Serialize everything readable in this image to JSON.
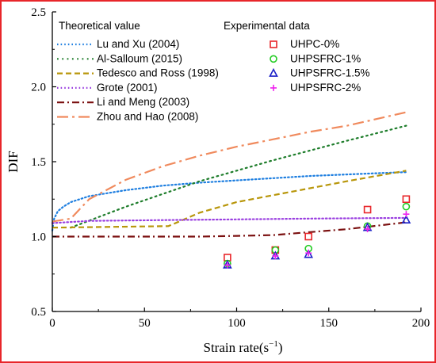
{
  "border_color": "#e8262a",
  "chart_data": {
    "type": "line",
    "xlabel": "Strain rate(s",
    "xlabel_sup": "−1",
    "xlabel_close": ")",
    "ylabel": "DIF",
    "xlim": [
      0,
      200
    ],
    "ylim": [
      0.5,
      2.5
    ],
    "xticks": [
      "0",
      "50",
      "100",
      "150",
      "200"
    ],
    "yticks": [
      "0.5",
      "1.0",
      "1.5",
      "2.0",
      "2.5"
    ],
    "xtick_values": [
      0,
      50,
      100,
      150,
      200
    ],
    "ytick_values": [
      0.5,
      1.0,
      1.5,
      2.0,
      2.5
    ],
    "grid": false,
    "legend_groups": [
      "Theoretical value",
      "Experimental data"
    ],
    "theoretical": [
      {
        "name": "Lu and Xu (2004)",
        "color": "#1f7fe0",
        "dash": "dot",
        "x": [
          0,
          1,
          3,
          6,
          10,
          20,
          40,
          60,
          80,
          100,
          120,
          140,
          160,
          180,
          192
        ],
        "y": [
          1.04,
          1.12,
          1.17,
          1.2,
          1.23,
          1.27,
          1.31,
          1.34,
          1.36,
          1.375,
          1.39,
          1.405,
          1.415,
          1.425,
          1.43
        ]
      },
      {
        "name": "Al-Salloum (2015)",
        "color": "#1e7d2b",
        "dash": "dotdense",
        "x": [
          10,
          40,
          80,
          120,
          160,
          192
        ],
        "y": [
          1.06,
          1.2,
          1.37,
          1.51,
          1.64,
          1.74
        ]
      },
      {
        "name": "Tedesco and Ross (1998)",
        "color": "#b8960a",
        "dash": "dash",
        "x": [
          0,
          63,
          80,
          100,
          130,
          160,
          192
        ],
        "y": [
          1.06,
          1.07,
          1.16,
          1.23,
          1.3,
          1.37,
          1.44
        ]
      },
      {
        "name": "Grote (2001)",
        "color": "#9a3fe0",
        "dash": "dot",
        "x": [
          0,
          20,
          60,
          100,
          140,
          192
        ],
        "y": [
          1.09,
          1.105,
          1.11,
          1.115,
          1.12,
          1.125
        ]
      },
      {
        "name": "Li and Meng (2003)",
        "color": "#7a0f0f",
        "dash": "dashdot",
        "x": [
          0,
          40,
          80,
          100,
          120,
          140,
          160,
          192
        ],
        "y": [
          1.0,
          1.0,
          1.0,
          1.005,
          1.01,
          1.03,
          1.05,
          1.095
        ]
      },
      {
        "name": "Zhou and Hao (2008)",
        "color": "#f08a5d",
        "dash": "longdashdot",
        "x": [
          0,
          10,
          20,
          40,
          60,
          80,
          100,
          120,
          140,
          160,
          192
        ],
        "y": [
          1.1,
          1.12,
          1.25,
          1.38,
          1.47,
          1.54,
          1.6,
          1.65,
          1.7,
          1.74,
          1.83
        ]
      }
    ],
    "experimental": [
      {
        "name": "UHPC-0%",
        "color": "#e8262a",
        "marker": "square",
        "x": [
          95,
          121,
          139,
          171,
          192
        ],
        "y": [
          0.86,
          0.91,
          1.0,
          1.18,
          1.25
        ]
      },
      {
        "name": "UHPSFRC-1%",
        "color": "#22cc22",
        "marker": "circle",
        "x": [
          95,
          121,
          139,
          171,
          192
        ],
        "y": [
          0.82,
          0.91,
          0.92,
          1.07,
          1.2
        ]
      },
      {
        "name": "UHPSFRC-1.5%",
        "color": "#1c22c8",
        "marker": "triangle",
        "x": [
          95,
          121,
          139,
          171,
          192
        ],
        "y": [
          0.81,
          0.87,
          0.88,
          1.06,
          1.11
        ]
      },
      {
        "name": "UHPSFRC-2%",
        "color": "#ee22ee",
        "marker": "plus",
        "x": [
          95,
          121,
          139,
          171,
          192
        ],
        "y": [
          0.81,
          0.87,
          0.89,
          1.05,
          1.15
        ]
      }
    ]
  }
}
